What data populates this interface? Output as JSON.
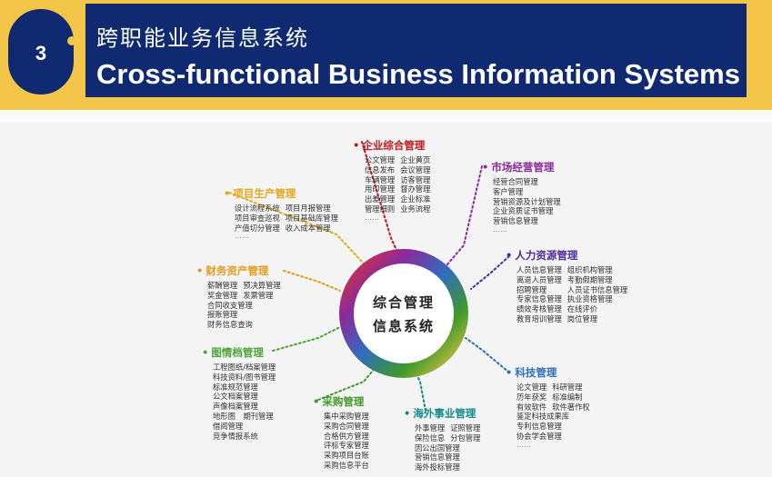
{
  "header": {
    "number": "3",
    "title_cn": "跨职能业务信息系统",
    "title_en": "Cross-functional Business Information Systems"
  },
  "hub": {
    "line1": "综合管理",
    "line2": "信息系统"
  },
  "groups": {
    "enterprise": {
      "title": "企业综合管理",
      "items": [
        "公文管理",
        "企业黄页",
        "信息发布",
        "会议管理",
        "车辆管理",
        "访客管理",
        "用印管理",
        "督办管理",
        "出差管理",
        "企业标准",
        "管理细则",
        "业务流程"
      ],
      "more": "……"
    },
    "market": {
      "title": "市场经营管理",
      "items": [
        "经营合同管理",
        "客户管理",
        "营销资源及计划管理",
        "企业资质证书管理",
        "营销信息管理"
      ],
      "more": "……"
    },
    "hr": {
      "title": "人力资源管理",
      "items": [
        "人员信息管理",
        "组织机构管理",
        "离退人员管理",
        "考勤假期管理",
        "招聘管理",
        "人员证书信息管理",
        "专家信息管理",
        "执业资格管理",
        "绩效考核管理",
        "在线评价",
        "教育培训管理",
        "岗位管理"
      ]
    },
    "tech": {
      "title": "科技管理",
      "items": [
        "论文管理",
        "科研管理",
        "历年获奖",
        "标准编制",
        "有效软件",
        "软件著作权",
        "鉴定科技成果库",
        "专利信息管理",
        "协会学会管理"
      ],
      "more": "……"
    },
    "overseas": {
      "title": "海外事业管理",
      "items": [
        "外事管理",
        "证照管理",
        "保险信息",
        "分包管理",
        "因公出国管理",
        "营销信息管理",
        "海外投标管理"
      ]
    },
    "purchase": {
      "title": "采购管理",
      "items": [
        "集中采购管理",
        "采购合同管理",
        "合格供方管理",
        "评标专家管理",
        "采购项目台账",
        "采购信息平台"
      ]
    },
    "archive": {
      "title": "图情档管理",
      "items": [
        "工程图纸/档案管理",
        "科技资料/图书管理",
        "标准规范管理",
        "公文档案管理",
        "声像档案管理",
        "地形图",
        "期刊管理",
        "借阅管理",
        "竞争情报系统"
      ]
    },
    "finance": {
      "title": "财务资产管理",
      "items": [
        "薪酬管理",
        "预决算管理",
        "奖金管理",
        "发票管理",
        "合同收支管理",
        "报账管理",
        "财务信息查询"
      ]
    },
    "project": {
      "title": "项目生产管理",
      "items": [
        "设计流程系统",
        "项目月报管理",
        "项目审查巡视",
        "项目基础库管理",
        "产值切分管理",
        "收入成本管理"
      ],
      "more": "……"
    }
  },
  "colors": {
    "navy": "#102a72",
    "gold": "#f3c64a",
    "enterprise": "#c0171f",
    "market": "#8b2a9b",
    "hr": "#4b2a9b",
    "tech": "#2f6dbf",
    "overseas": "#138a8a",
    "purchase": "#3f9a2a",
    "archive": "#4fa33a",
    "finance": "#e39b1a",
    "project": "#e5a619"
  }
}
